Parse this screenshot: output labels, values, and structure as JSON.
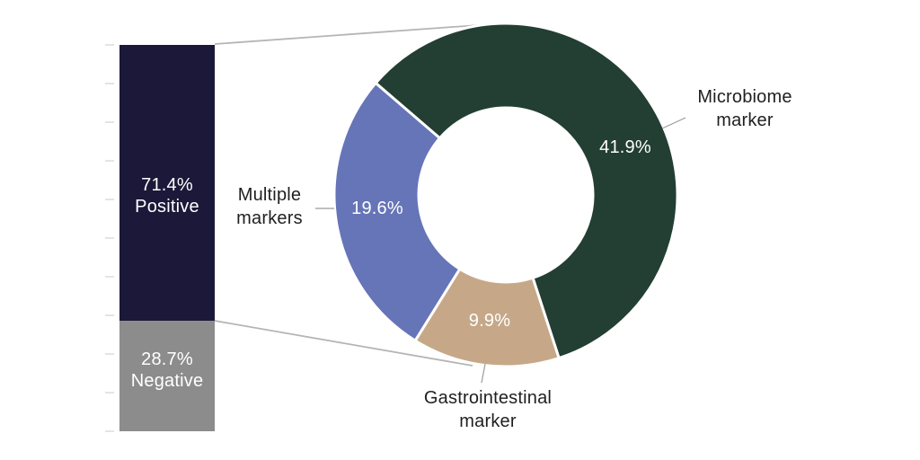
{
  "chart_data": [
    {
      "type": "bar",
      "variant": "stacked-column-100",
      "title": "",
      "xlabel": "",
      "ylabel": "",
      "ylim": [
        0,
        100
      ],
      "tick_step": 10,
      "axis_tick_labels": "none",
      "series": [
        {
          "name": "Positive",
          "value": 71.4,
          "display": "71.4%",
          "color": "#1B1839"
        },
        {
          "name": "Negative",
          "value": 28.7,
          "display": "28.7%",
          "color": "#8C8C8C"
        }
      ]
    },
    {
      "type": "pie",
      "variant": "donut",
      "title": "",
      "inner_radius_ratio": 0.51,
      "start_angle_deg": -49.3,
      "direction": "clockwise",
      "note_total_of_positive": 71.4,
      "segments": [
        {
          "label": "Microbiome marker",
          "label_lines": [
            "Microbiome",
            "marker"
          ],
          "value": 41.9,
          "display": "41.9%",
          "color": "#233E33"
        },
        {
          "label": "Gastrointestinal marker",
          "label_lines": [
            "Gastrointestinal",
            "marker"
          ],
          "value": 9.9,
          "display": "9.9%",
          "color": "#C6A888"
        },
        {
          "label": "Multiple markers",
          "label_lines": [
            "Multiple",
            "markers"
          ],
          "value": 19.6,
          "display": "19.6%",
          "color": "#6674B8"
        }
      ]
    }
  ],
  "colors": {
    "background": "#FFFFFF",
    "connector_line": "#B5B5B5",
    "leader_line": "#9B9B9B",
    "axis_tick": "#D9D9D9",
    "segment_separator": "#FFFFFF",
    "label_text": "#1F1F1F",
    "value_text": "#FFFFFF"
  }
}
